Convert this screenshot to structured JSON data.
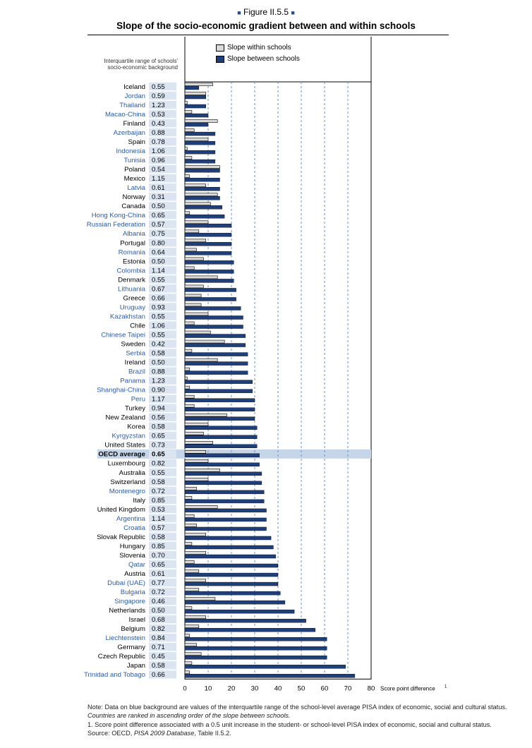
{
  "figure_label": "Figure II.5.5",
  "title": "Slope of the socio-economic gradient between and within schools",
  "legend": [
    {
      "label": "Slope within schools",
      "color": "#d9d9d9"
    },
    {
      "label": "Slope between schools",
      "color": "#1f3f7a"
    }
  ],
  "iqr_header": "Interquartile range of schools' socio-economic background",
  "notes": {
    "note1_a": "Note: Data on blue background are values of the interquartile range of the school-level average PISA index of economic, social and cultural status.",
    "note1_b": "Countries are ranked in ascending order of the slope between schools.",
    "note2": "1. Score point difference associated with a 0.5 unit increase in the student- or school-level PISA index of economic, social and cultural status.",
    "source_prefix": "Source: OECD, ",
    "source_italic": "PISA 2009 Database",
    "source_suffix": ", Table II.5.2."
  },
  "colors": {
    "between_bar": "#1f3f7a",
    "within_bar": "#d9d9d9",
    "iqr_bg": "#dbe5f1",
    "blue_label": "#2a5ca8",
    "oecd_highlight": "#c5d6ea",
    "grid": "#6d8fc0"
  },
  "chart_data": {
    "type": "bar",
    "orientation": "horizontal",
    "xlim": [
      0,
      80
    ],
    "xticks": [
      0,
      10,
      20,
      30,
      40,
      50,
      60,
      70,
      80
    ],
    "xlabel": "Score point difference",
    "xlabel_superscript": "1",
    "grid": true,
    "categories": [
      "Iceland",
      "Jordan",
      "Thailand",
      "Macao-China",
      "Finland",
      "Azerbaijan",
      "Spain",
      "Indonesia",
      "Tunisia",
      "Poland",
      "Mexico",
      "Latvia",
      "Norway",
      "Canada",
      "Hong Kong-China",
      "Russian Federation",
      "Albania",
      "Portugal",
      "Romania",
      "Estonia",
      "Colombia",
      "Denmark",
      "Lithuania",
      "Greece",
      "Uruguay",
      "Kazakhstan",
      "Chile",
      "Chinese Taipei",
      "Sweden",
      "Serbia",
      "Ireland",
      "Brazil",
      "Panama",
      "Shanghai-China",
      "Peru",
      "Turkey",
      "New Zealand",
      "Korea",
      "Kyrgyzstan",
      "United States",
      "OECD average",
      "Luxembourg",
      "Australia",
      "Switzerland",
      "Montenegro",
      "Italy",
      "United Kingdom",
      "Argentina",
      "Croatia",
      "Slovak Republic",
      "Hungary",
      "Slovenia",
      "Qatar",
      "Austria",
      "Dubai (UAE)",
      "Bulgaria",
      "Singapore",
      "Netherlands",
      "Israel",
      "Belgium",
      "Liechtenstein",
      "Germany",
      "Czech Republic",
      "Japan",
      "Trinidad and Tobago"
    ],
    "partner": [
      false,
      true,
      true,
      true,
      false,
      true,
      false,
      true,
      true,
      false,
      false,
      true,
      false,
      false,
      true,
      true,
      true,
      false,
      true,
      false,
      true,
      false,
      true,
      false,
      true,
      true,
      false,
      true,
      false,
      true,
      false,
      true,
      true,
      true,
      true,
      false,
      false,
      false,
      true,
      false,
      false,
      false,
      false,
      false,
      true,
      false,
      false,
      true,
      true,
      false,
      false,
      false,
      true,
      false,
      true,
      true,
      true,
      false,
      false,
      false,
      true,
      false,
      false,
      false,
      true
    ],
    "iqr": [
      "0.55",
      "0.59",
      "1.23",
      "0.53",
      "0.43",
      "0.88",
      "0.78",
      "1.06",
      "0.96",
      "0.54",
      "1.15",
      "0.61",
      "0.31",
      "0.50",
      "0.65",
      "0.57",
      "0.75",
      "0.80",
      "0.64",
      "0.50",
      "1.14",
      "0.55",
      "0.67",
      "0.66",
      "0.93",
      "0.55",
      "1.06",
      "0.55",
      "0.42",
      "0.58",
      "0.50",
      "0.88",
      "1.23",
      "0.90",
      "1.17",
      "0.94",
      "0.56",
      "0.58",
      "0.65",
      "0.73",
      "0.65",
      "0.82",
      "0.55",
      "0.58",
      "0.72",
      "0.85",
      "0.53",
      "1.14",
      "0.57",
      "0.58",
      "0.85",
      "0.70",
      "0.65",
      "0.61",
      "0.77",
      "0.72",
      "0.46",
      "0.50",
      "0.68",
      "0.82",
      "0.84",
      "0.71",
      "0.45",
      "0.58",
      "0.66"
    ],
    "series": [
      {
        "name": "Slope within schools",
        "values": [
          12,
          9,
          1,
          3,
          14,
          4,
          10,
          1,
          3,
          15,
          2,
          9,
          14,
          11,
          2,
          10,
          6,
          9,
          5,
          8,
          4,
          14,
          8,
          7,
          7,
          10,
          4,
          11,
          17,
          3,
          14,
          2,
          1,
          2,
          4,
          4,
          18,
          10,
          8,
          12,
          9,
          10,
          15,
          10,
          5,
          3,
          14,
          4,
          5,
          9,
          3,
          9,
          4,
          6,
          9,
          6,
          13,
          3,
          9,
          6,
          2,
          5,
          7,
          3,
          2
        ]
      },
      {
        "name": "Slope between schools",
        "values": [
          6,
          9,
          9,
          10,
          10,
          13,
          13,
          13,
          13,
          15,
          15,
          15,
          15,
          16,
          17,
          20,
          20,
          20,
          20,
          21,
          21,
          21,
          22,
          22,
          24,
          25,
          25,
          26,
          26,
          27,
          27,
          27,
          29,
          29,
          30,
          30,
          30,
          31,
          31,
          31,
          32,
          32,
          33,
          33,
          34,
          34,
          35,
          35,
          35,
          37,
          38,
          39,
          40,
          40,
          40,
          41,
          43,
          47,
          52,
          56,
          61,
          61,
          61,
          69,
          73
        ]
      }
    ]
  }
}
